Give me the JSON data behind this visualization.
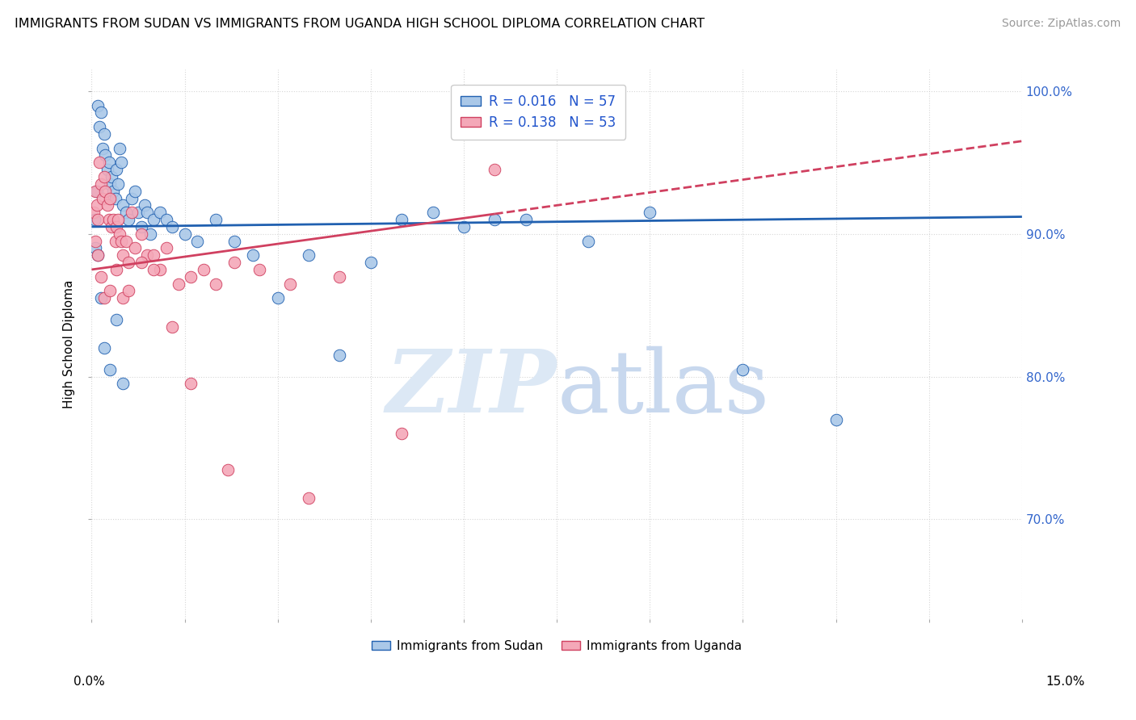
{
  "title": "IMMIGRANTS FROM SUDAN VS IMMIGRANTS FROM UGANDA HIGH SCHOOL DIPLOMA CORRELATION CHART",
  "source_text": "Source: ZipAtlas.com",
  "ylabel": "High School Diploma",
  "xmin": 0.0,
  "xmax": 15.0,
  "ymin": 63.0,
  "ymax": 101.5,
  "right_yticks": [
    70.0,
    80.0,
    90.0,
    100.0
  ],
  "legend_r1": "R = 0.016",
  "legend_n1": "N = 57",
  "legend_r2": "R = 0.138",
  "legend_n2": "N = 53",
  "color_sudan": "#aac8e8",
  "color_uganda": "#f4a8b8",
  "color_sudan_line": "#2060b0",
  "color_uganda_line": "#d04060",
  "watermark_color": "#dce8f5",
  "sudan_line_y0": 90.5,
  "sudan_line_y1": 91.2,
  "uganda_line_y0": 87.5,
  "uganda_line_y1": 96.5,
  "uganda_solid_xmax": 6.5,
  "sudan_x": [
    0.05,
    0.08,
    0.1,
    0.12,
    0.15,
    0.18,
    0.2,
    0.22,
    0.25,
    0.28,
    0.3,
    0.32,
    0.35,
    0.38,
    0.4,
    0.42,
    0.45,
    0.48,
    0.5,
    0.55,
    0.6,
    0.65,
    0.7,
    0.75,
    0.8,
    0.85,
    0.9,
    0.95,
    1.0,
    1.1,
    1.2,
    1.3,
    1.5,
    1.7,
    2.0,
    2.3,
    2.6,
    3.0,
    3.5,
    4.0,
    4.5,
    5.0,
    5.5,
    6.0,
    6.5,
    7.0,
    8.0,
    9.0,
    10.5,
    12.0,
    0.06,
    0.1,
    0.15,
    0.2,
    0.3,
    0.4,
    0.5
  ],
  "sudan_y": [
    91.0,
    93.0,
    99.0,
    97.5,
    98.5,
    96.0,
    97.0,
    95.5,
    94.5,
    95.0,
    93.5,
    94.0,
    93.0,
    92.5,
    94.5,
    93.5,
    96.0,
    95.0,
    92.0,
    91.5,
    91.0,
    92.5,
    93.0,
    91.5,
    90.5,
    92.0,
    91.5,
    90.0,
    91.0,
    91.5,
    91.0,
    90.5,
    90.0,
    89.5,
    91.0,
    89.5,
    88.5,
    85.5,
    88.5,
    81.5,
    88.0,
    91.0,
    91.5,
    90.5,
    91.0,
    91.0,
    89.5,
    91.5,
    80.5,
    77.0,
    89.0,
    88.5,
    85.5,
    82.0,
    80.5,
    84.0,
    79.5
  ],
  "uganda_x": [
    0.04,
    0.06,
    0.08,
    0.1,
    0.12,
    0.15,
    0.18,
    0.2,
    0.22,
    0.25,
    0.28,
    0.3,
    0.32,
    0.35,
    0.38,
    0.4,
    0.42,
    0.45,
    0.48,
    0.5,
    0.55,
    0.6,
    0.65,
    0.7,
    0.8,
    0.9,
    1.0,
    1.1,
    1.2,
    1.4,
    1.6,
    1.8,
    2.0,
    2.3,
    2.7,
    3.2,
    4.0,
    5.0,
    6.5,
    0.06,
    0.1,
    0.15,
    0.2,
    0.3,
    0.4,
    0.5,
    0.6,
    0.8,
    1.0,
    1.3,
    1.6,
    2.2,
    3.5
  ],
  "uganda_y": [
    91.5,
    93.0,
    92.0,
    91.0,
    95.0,
    93.5,
    92.5,
    94.0,
    93.0,
    92.0,
    91.0,
    92.5,
    90.5,
    91.0,
    89.5,
    90.5,
    91.0,
    90.0,
    89.5,
    88.5,
    89.5,
    88.0,
    91.5,
    89.0,
    90.0,
    88.5,
    88.5,
    87.5,
    89.0,
    86.5,
    87.0,
    87.5,
    86.5,
    88.0,
    87.5,
    86.5,
    87.0,
    76.0,
    94.5,
    89.5,
    88.5,
    87.0,
    85.5,
    86.0,
    87.5,
    85.5,
    86.0,
    88.0,
    87.5,
    83.5,
    79.5,
    73.5,
    71.5
  ]
}
